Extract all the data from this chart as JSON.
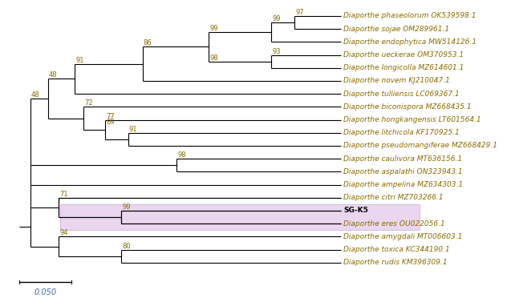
{
  "taxa": [
    {
      "name": "Diaporthe phaseolorum OK539598.1",
      "y": 1
    },
    {
      "name": "Diaporthe sojae OM289961.1",
      "y": 2
    },
    {
      "name": "Diaporthe endophytica MW514126.1",
      "y": 3
    },
    {
      "name": "Diaporthe ueckerae OM370953.1",
      "y": 4
    },
    {
      "name": "Diaporthe longicolla MZ614601.1",
      "y": 5
    },
    {
      "name": "Diaporthe novem KJ210047.1",
      "y": 6
    },
    {
      "name": "Diaporthe tulliensis LC069367.1",
      "y": 7
    },
    {
      "name": "Diaporthe biconispora MZ668435.1",
      "y": 8
    },
    {
      "name": "Diaporthe hongkangensis LT601564.1",
      "y": 9
    },
    {
      "name": "Diaporthe litchicola KF170925.1",
      "y": 10
    },
    {
      "name": "Diaporthe pseudomangiferae MZ668429.1",
      "y": 11
    },
    {
      "name": "Diaporthe caulivora MT636156.1",
      "y": 12
    },
    {
      "name": "Diaporthe aspalathi ON323943.1",
      "y": 13
    },
    {
      "name": "Diaporthe ampelina MZ634303.1",
      "y": 14
    },
    {
      "name": "Diaporthe citri MZ703266.1",
      "y": 15
    },
    {
      "name": "SG-K5",
      "y": 16,
      "bold": true
    },
    {
      "name": "Diaporthe eres OU022056.1",
      "y": 17
    },
    {
      "name": "Diaporthe amygdali MT006603.1",
      "y": 18
    },
    {
      "name": "Diaporthe toxica KC344190.1",
      "y": 19
    },
    {
      "name": "Diaporthe rudis KM396309.1",
      "y": 20
    }
  ],
  "taxon_color": "#8B6B00",
  "sgk5_color": "#000000",
  "bootstrap_color": "#8B6B00",
  "line_color": "#000000",
  "highlight_color": "#EAD6EE",
  "highlight_border": "#C9A8D8",
  "scale_label": "0.050",
  "taxa_fontsize": 6.5,
  "bootstrap_fontsize": 6.0,
  "scale_fontsize": 7.0,
  "background_color": "#FFFFFF"
}
